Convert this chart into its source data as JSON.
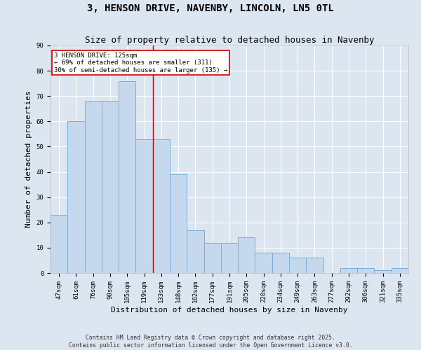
{
  "title": "3, HENSON DRIVE, NAVENBY, LINCOLN, LN5 0TL",
  "subtitle": "Size of property relative to detached houses in Navenby",
  "xlabel": "Distribution of detached houses by size in Navenby",
  "ylabel": "Number of detached properties",
  "categories": [
    "47sqm",
    "61sqm",
    "76sqm",
    "90sqm",
    "105sqm",
    "119sqm",
    "133sqm",
    "148sqm",
    "162sqm",
    "177sqm",
    "191sqm",
    "205sqm",
    "220sqm",
    "234sqm",
    "249sqm",
    "263sqm",
    "277sqm",
    "292sqm",
    "306sqm",
    "321sqm",
    "335sqm"
  ],
  "values": [
    23,
    60,
    68,
    68,
    76,
    53,
    53,
    39,
    17,
    12,
    12,
    14,
    8,
    8,
    6,
    6,
    0,
    2,
    2,
    1,
    2
  ],
  "bar_color": "#c5d8ed",
  "bar_edge_color": "#7bafd4",
  "property_line_x": 5.5,
  "property_label": "3 HENSON DRIVE: 125sqm",
  "annotation_line1": "← 69% of detached houses are smaller (311)",
  "annotation_line2": "30% of semi-detached houses are larger (135) →",
  "annotation_box_color": "#ffffff",
  "annotation_box_edge": "#cc0000",
  "vline_color": "#cc0000",
  "ylim": [
    0,
    90
  ],
  "yticks": [
    0,
    10,
    20,
    30,
    40,
    50,
    60,
    70,
    80,
    90
  ],
  "bg_color": "#dce6f1",
  "plot_bg_color": "#dce6f1",
  "footer": "Contains HM Land Registry data © Crown copyright and database right 2025.\nContains public sector information licensed under the Open Government Licence v3.0.",
  "title_fontsize": 10,
  "subtitle_fontsize": 9,
  "annotation_fontsize": 6.5,
  "axis_label_fontsize": 8,
  "tick_fontsize": 6.5,
  "footer_fontsize": 5.8
}
